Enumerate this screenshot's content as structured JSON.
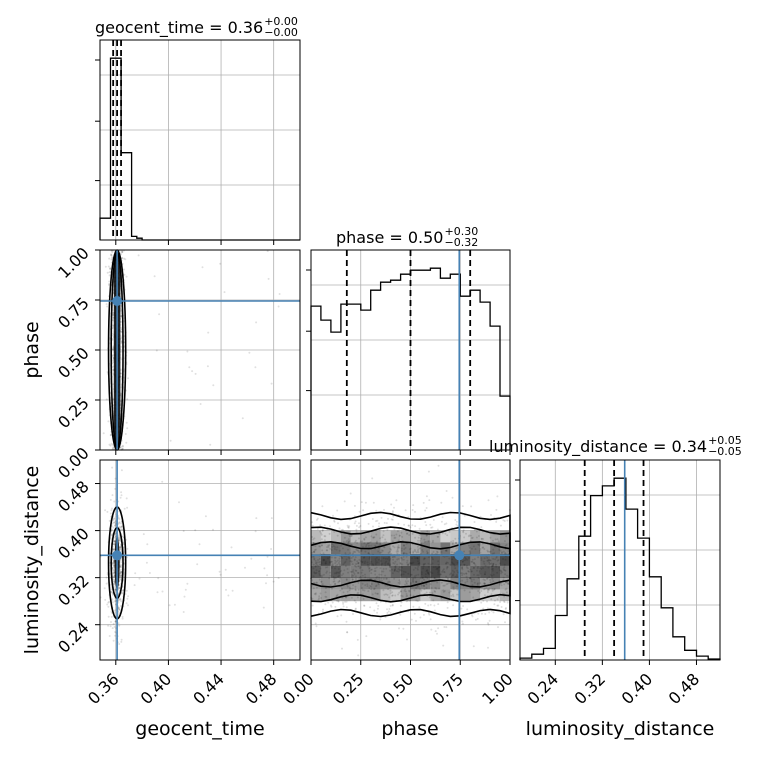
{
  "chart_data": {
    "type": "corner",
    "parameters": [
      "geocent_time",
      "phase",
      "luminosity_distance"
    ],
    "ranges": {
      "geocent_time": [
        0.348,
        0.5
      ],
      "phase": [
        0.0,
        1.0
      ],
      "luminosity_distance": [
        0.18,
        0.52
      ]
    },
    "truths": {
      "geocent_time": 0.361,
      "phase": 0.745,
      "luminosity_distance": 0.358
    },
    "ticks": {
      "geocent_time": [
        "0.36",
        "0.40",
        "0.44",
        "0.48"
      ],
      "phase": [
        "0.00",
        "0.25",
        "0.50",
        "0.75",
        "1.00"
      ],
      "luminosity_distance": [
        "0.24",
        "0.32",
        "0.40",
        "0.48"
      ]
    },
    "titles": [
      {
        "param": "geocent_time",
        "main": "geocent_time = 0.36",
        "plus": "+0.00",
        "minus": "−0.00"
      },
      {
        "param": "phase",
        "main": "phase = 0.50",
        "plus": "+0.30",
        "minus": "−0.32"
      },
      {
        "param": "luminosity_distance",
        "main": "luminosity_distance = 0.34",
        "plus": "+0.05",
        "minus": "−0.05"
      }
    ],
    "quantiles": {
      "geocent_time": [
        0.358,
        0.361,
        0.364
      ],
      "phase": [
        0.18,
        0.5,
        0.8
      ],
      "luminosity_distance": [
        0.29,
        0.34,
        0.39
      ]
    },
    "histograms": {
      "geocent_time": {
        "edges": [
          0.348,
          0.352,
          0.356,
          0.36,
          0.364,
          0.368,
          0.372,
          0.376,
          0.38,
          0.5
        ],
        "counts": [
          0.12,
          0.12,
          1.0,
          1.0,
          0.48,
          0.48,
          0.02,
          0.01,
          0.0
        ]
      },
      "phase": {
        "edges": [
          0.0,
          0.05,
          0.1,
          0.15,
          0.2,
          0.25,
          0.3,
          0.35,
          0.4,
          0.45,
          0.5,
          0.55,
          0.6,
          0.65,
          0.7,
          0.75,
          0.8,
          0.85,
          0.9,
          0.95,
          1.0
        ],
        "counts": [
          0.72,
          0.65,
          0.59,
          0.73,
          0.73,
          0.7,
          0.8,
          0.84,
          0.85,
          0.88,
          0.9,
          0.9,
          0.91,
          0.86,
          0.88,
          0.77,
          0.8,
          0.74,
          0.62,
          0.27
        ]
      },
      "luminosity_distance": {
        "edges": [
          0.18,
          0.2,
          0.22,
          0.24,
          0.26,
          0.28,
          0.3,
          0.32,
          0.34,
          0.36,
          0.38,
          0.4,
          0.42,
          0.44,
          0.46,
          0.48,
          0.5,
          0.52
        ],
        "counts": [
          0.01,
          0.03,
          0.06,
          0.23,
          0.42,
          0.64,
          0.85,
          0.9,
          0.94,
          0.78,
          0.63,
          0.43,
          0.27,
          0.12,
          0.05,
          0.02,
          0.005
        ]
      }
    },
    "grid": true,
    "truth_color": "#4682b4"
  }
}
